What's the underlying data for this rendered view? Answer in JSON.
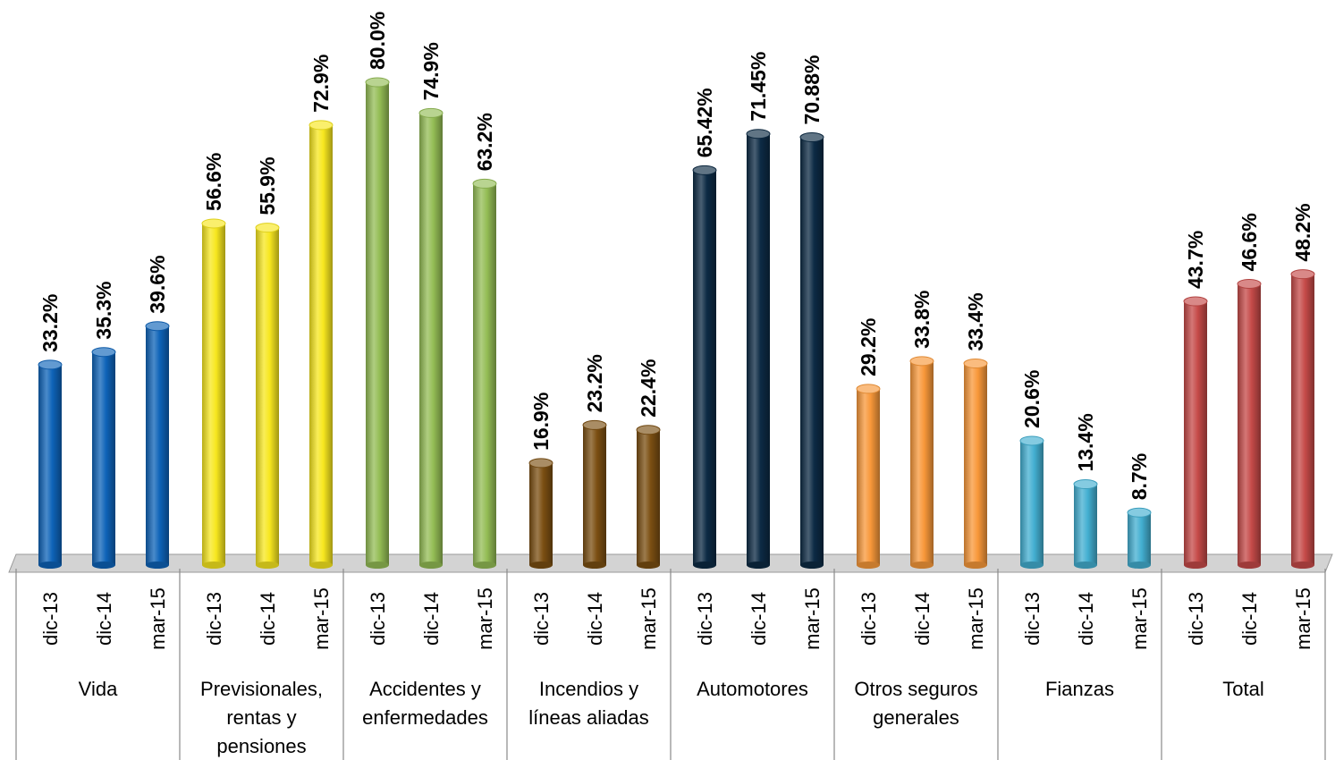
{
  "chart_data": {
    "type": "bar",
    "title": "",
    "xlabel": "",
    "ylabel": "",
    "ylim": [
      0,
      85
    ],
    "grid": false,
    "legend": "none",
    "periods": [
      "dic-13",
      "dic-14",
      "mar-15"
    ],
    "groups": [
      {
        "label": "Vida",
        "color": "#0e63b8",
        "values": [
          33.2,
          35.3,
          39.6
        ],
        "labels": [
          "33.2%",
          "35.3%",
          "39.6%"
        ]
      },
      {
        "label": "Previsionales, rentas y pensiones",
        "color": "#f7e71f",
        "values": [
          56.6,
          55.9,
          72.9
        ],
        "labels": [
          "56.6%",
          "55.9%",
          "72.9%"
        ]
      },
      {
        "label": "Accidentes y enfermedades",
        "color": "#94bd55",
        "values": [
          80.0,
          74.9,
          63.2
        ],
        "labels": [
          "80.0%",
          "74.9%",
          "63.2%"
        ]
      },
      {
        "label": "Incendios y líneas aliadas",
        "color": "#7b4f12",
        "values": [
          16.9,
          23.2,
          22.4
        ],
        "labels": [
          "16.9%",
          "23.2%",
          "22.4%"
        ]
      },
      {
        "label": "Automotores",
        "color": "#0c2a44",
        "values": [
          65.42,
          71.45,
          70.88
        ],
        "labels": [
          "65.42%",
          "71.45%",
          "70.88%"
        ]
      },
      {
        "label": "Otros seguros generales",
        "color": "#f8983a",
        "values": [
          29.2,
          33.8,
          33.4
        ],
        "labels": [
          "29.2%",
          "33.8%",
          "33.4%"
        ]
      },
      {
        "label": "Fianzas",
        "color": "#43afd1",
        "values": [
          20.6,
          13.4,
          8.7
        ],
        "labels": [
          "20.6%",
          "13.4%",
          "8.7%"
        ]
      },
      {
        "label": "Total",
        "color": "#c54a48",
        "values": [
          43.7,
          46.6,
          48.2
        ],
        "labels": [
          "43.7%",
          "46.6%",
          "48.2%"
        ]
      }
    ]
  }
}
